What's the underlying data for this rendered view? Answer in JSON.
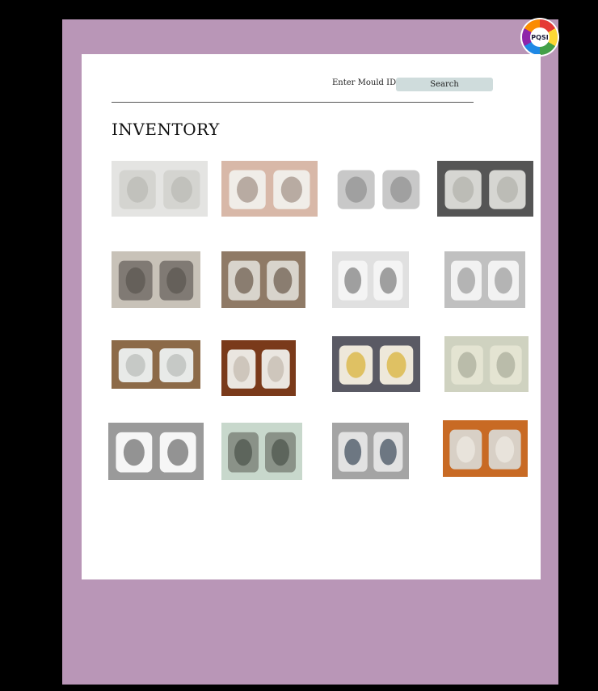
{
  "logo": {
    "text": "PQSI"
  },
  "search": {
    "label": "Enter Mould ID",
    "button_label": "Search"
  },
  "page": {
    "title": "INVENTORY"
  },
  "tiles": [
    {
      "name": "mould-image-mug-pair",
      "bg": "#e4e4e2",
      "object": "#d4d4d0",
      "accent": "#b9b9b4"
    },
    {
      "name": "mould-image-pitcher",
      "bg": "#d8b8a8",
      "object": "#f0ede8",
      "accent": "#9f8f84"
    },
    {
      "name": "mould-image-cup-set",
      "bg": "#ffffff",
      "object": "#c8c8c8",
      "accent": "#8f8f8f"
    },
    {
      "name": "mould-image-relief-halves",
      "bg": "#555555",
      "object": "#d6d6d2",
      "accent": "#b0b0aa"
    },
    {
      "name": "mould-image-ribbed-vase",
      "bg": "#c8c2b8",
      "object": "#807a74",
      "accent": "#5a5550"
    },
    {
      "name": "mould-image-workshop-vase",
      "bg": "#8f7a66",
      "object": "#d8d4cc",
      "accent": "#6a5848"
    },
    {
      "name": "mould-image-cat-figure",
      "bg": "#e0e0e0",
      "object": "#f4f4f4",
      "accent": "#7a7a7a"
    },
    {
      "name": "mould-image-star",
      "bg": "#c0c0c0",
      "object": "#f2f2f2",
      "accent": "#9a9a9a"
    },
    {
      "name": "mould-image-tray-halves",
      "bg": "#8c6a48",
      "object": "#e8eae8",
      "accent": "#b8bbb8"
    },
    {
      "name": "mould-image-round-vase",
      "bg": "#7a3a1a",
      "object": "#eae6e0",
      "accent": "#c2b8ac"
    },
    {
      "name": "mould-image-slip-pouring",
      "bg": "#5a5a64",
      "object": "#eee8da",
      "accent": "#d8b030"
    },
    {
      "name": "mould-image-ornate-relief",
      "bg": "#cfd2c0",
      "object": "#e4e4d2",
      "accent": "#a8ab98"
    },
    {
      "name": "mould-image-three-vases",
      "bg": "#9a9a9a",
      "object": "#f6f6f6",
      "accent": "#6a6a6a"
    },
    {
      "name": "mould-image-production-racks",
      "bg": "#c8d8cc",
      "object": "#8a9288",
      "accent": "#4a524a"
    },
    {
      "name": "mould-image-worker-casting",
      "bg": "#a4a4a4",
      "object": "#e2e2e2",
      "accent": "#3c4a5a"
    },
    {
      "name": "mould-image-vase-open-mould",
      "bg": "#c86a24",
      "object": "#d8d0c6",
      "accent": "#f0ebe4"
    }
  ]
}
